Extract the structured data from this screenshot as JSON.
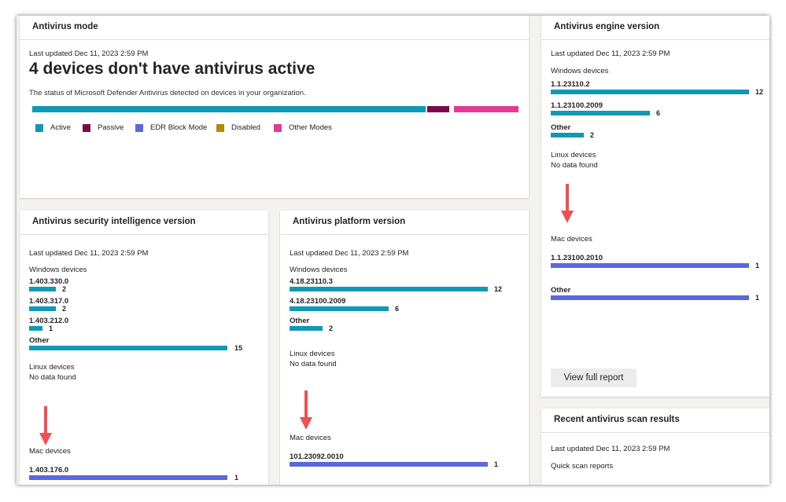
{
  "colors": {
    "active": "#0f99b4",
    "passive": "#7a0b4a",
    "edr_block_mode": "#5a68e0",
    "disabled": "#b08b0c",
    "other_modes": "#e13b96",
    "mac_bar": "#5a68e0",
    "arrow": "#f25050"
  },
  "antivirus_mode": {
    "title": "Antivirus mode",
    "updated": "Last updated Dec 11, 2023 2:59 PM",
    "headline": "4 devices don't have antivirus active",
    "description": "The status of Microsoft Defender Antivirus detected on devices in your organization.",
    "stacked_bar": [
      {
        "mode": "Active",
        "fraction": 0.808
      },
      {
        "mode": "Passive",
        "fraction": 0.048
      },
      {
        "mode": "Other Modes",
        "fraction": 0.133
      }
    ],
    "legend": [
      {
        "label": "Active",
        "color": "#0f99b4"
      },
      {
        "label": "Passive",
        "color": "#7a0b4a"
      },
      {
        "label": "EDR Block Mode",
        "color": "#5a68e0"
      },
      {
        "label": "Disabled",
        "color": "#b08b0c"
      },
      {
        "label": "Other Modes",
        "color": "#e13b96"
      }
    ]
  },
  "security_intelligence": {
    "title": "Antivirus security intelligence version",
    "updated": "Last updated Dec 11, 2023 2:59 PM",
    "windows_label": "Windows devices",
    "windows": [
      {
        "version": "1.403.330.0",
        "count": "2"
      },
      {
        "version": "1.403.317.0",
        "count": "2"
      },
      {
        "version": "1.403.212.0",
        "count": "1"
      },
      {
        "version": "Other",
        "count": "15"
      }
    ],
    "linux_label": "Linux devices",
    "linux_value": "No data found",
    "mac_label": "Mac devices",
    "mac": [
      {
        "version": "1.403.176.0",
        "count": "1"
      }
    ]
  },
  "platform": {
    "title": "Antivirus platform version",
    "updated": "Last updated Dec 11, 2023 2:59 PM",
    "windows_label": "Windows devices",
    "windows": [
      {
        "version": "4.18.23110.3",
        "count": "12"
      },
      {
        "version": "4.18.23100.2009",
        "count": "6"
      },
      {
        "version": "Other",
        "count": "2"
      }
    ],
    "linux_label": "Linux devices",
    "linux_value": "No data found",
    "mac_label": "Mac devices",
    "mac": [
      {
        "version": "101.23092.0010",
        "count": "1"
      }
    ]
  },
  "engine": {
    "title": "Antivirus engine version",
    "updated": "Last updated Dec 11, 2023 2:59 PM",
    "windows_label": "Windows devices",
    "windows": [
      {
        "version": "1.1.23110.2",
        "count": "12"
      },
      {
        "version": "1.1.23100.2009",
        "count": "6"
      },
      {
        "version": "Other",
        "count": "2"
      }
    ],
    "linux_label": "Linux devices",
    "linux_value": "No data found",
    "mac_label": "Mac devices",
    "mac": [
      {
        "version": "1.1.23100.2010",
        "count": "1"
      },
      {
        "version": "Other",
        "count": "1"
      }
    ],
    "button": "View full report"
  },
  "scan_results": {
    "title": "Recent antivirus scan results",
    "updated": "Last updated Dec 11, 2023 2:59 PM",
    "quick_scan_label": "Quick scan reports"
  }
}
